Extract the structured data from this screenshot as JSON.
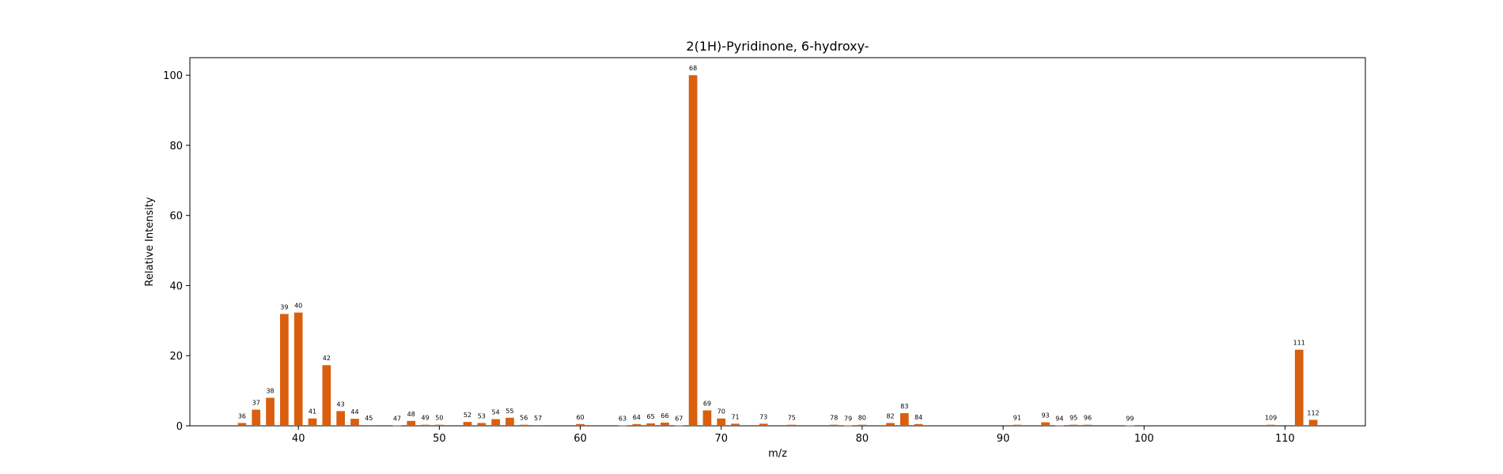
{
  "chart_data": {
    "type": "bar",
    "title": "2(1H)-Pyridinone, 6-hydroxy-",
    "xlabel": "m/z",
    "ylabel": "Relative Intensity",
    "xlim": [
      32.3,
      115.7
    ],
    "ylim": [
      0,
      105
    ],
    "xticks": [
      40,
      50,
      60,
      70,
      80,
      90,
      100,
      110
    ],
    "yticks": [
      0,
      20,
      40,
      60,
      80,
      100
    ],
    "grid": false,
    "bar_color": "#d95f0e",
    "x": [
      36,
      37,
      38,
      39,
      40,
      41,
      42,
      43,
      44,
      45,
      47,
      48,
      49,
      50,
      52,
      53,
      54,
      55,
      56,
      57,
      60,
      63,
      64,
      65,
      66,
      67,
      68,
      69,
      70,
      71,
      73,
      75,
      78,
      79,
      80,
      82,
      83,
      84,
      91,
      93,
      94,
      95,
      96,
      99,
      109,
      111,
      112
    ],
    "values": [
      0.8,
      4.6,
      8.0,
      31.9,
      32.3,
      2.1,
      17.3,
      4.2,
      2.0,
      0.2,
      0.1,
      1.4,
      0.3,
      0.3,
      1.1,
      0.8,
      1.9,
      2.3,
      0.3,
      0.2,
      0.5,
      0.1,
      0.5,
      0.7,
      0.9,
      0.1,
      100.0,
      4.4,
      2.1,
      0.6,
      0.6,
      0.3,
      0.3,
      0.1,
      0.3,
      0.8,
      3.6,
      0.5,
      0.3,
      1.0,
      0.1,
      0.3,
      0.3,
      0.1,
      0.3,
      21.7,
      1.7
    ]
  }
}
